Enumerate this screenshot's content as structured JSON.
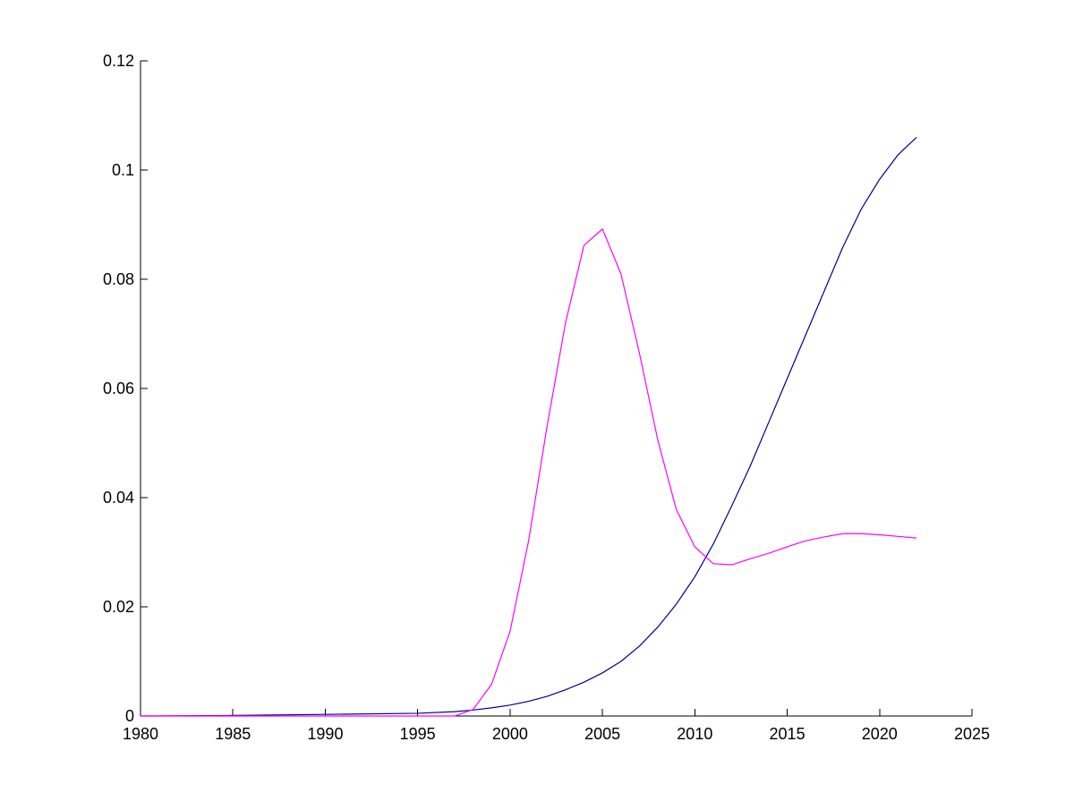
{
  "chart_data": {
    "type": "line",
    "title": "",
    "xlabel": "",
    "ylabel": "",
    "xlim": [
      1980,
      2025
    ],
    "ylim": [
      0,
      0.12
    ],
    "xticks": [
      "1980",
      "1985",
      "1990",
      "1995",
      "2000",
      "2005",
      "2010",
      "2015",
      "2020",
      "2025"
    ],
    "yticks": [
      "0",
      "0.02",
      "0.04",
      "0.06",
      "0.08",
      "0.1",
      "0.12"
    ],
    "grid": false,
    "legend": "none",
    "series": [
      {
        "color": "#00008b",
        "x": [
          1980,
          1985,
          1990,
          1995,
          1997,
          1998,
          1999,
          2000,
          2001,
          2002,
          2003,
          2004,
          2005,
          2006,
          2007,
          2008,
          2009,
          2010,
          2011,
          2012,
          2013,
          2014,
          2015,
          2016,
          2017,
          2018,
          2019,
          2020,
          2021,
          2022
        ],
        "y": [
          0,
          0.0001,
          0.0003,
          0.0005,
          0.0008,
          0.0011,
          0.0015,
          0.002,
          0.0027,
          0.0036,
          0.0048,
          0.0062,
          0.0079,
          0.01,
          0.0128,
          0.0163,
          0.0205,
          0.0255,
          0.0315,
          0.0385,
          0.0458,
          0.0538,
          0.0618,
          0.0698,
          0.0778,
          0.0858,
          0.0928,
          0.0983,
          0.1028,
          0.106
        ]
      },
      {
        "color": "#ff00ff",
        "x": [
          1980,
          1985,
          1990,
          1995,
          1997,
          1998,
          1999,
          2000,
          2001,
          2002,
          2003,
          2004,
          2005,
          2006,
          2007,
          2008,
          2009,
          2010,
          2011,
          2012,
          2013,
          2014,
          2015,
          2016,
          2017,
          2018,
          2019,
          2020,
          2021,
          2022
        ],
        "y": [
          0,
          0,
          0,
          0,
          0,
          0.0012,
          0.0058,
          0.0155,
          0.032,
          0.053,
          0.072,
          0.0862,
          0.0892,
          0.081,
          0.0665,
          0.0505,
          0.0378,
          0.031,
          0.0279,
          0.0277,
          0.0288,
          0.0298,
          0.031,
          0.0321,
          0.0328,
          0.0334,
          0.0334,
          0.0332,
          0.0329,
          0.0326
        ]
      }
    ]
  }
}
